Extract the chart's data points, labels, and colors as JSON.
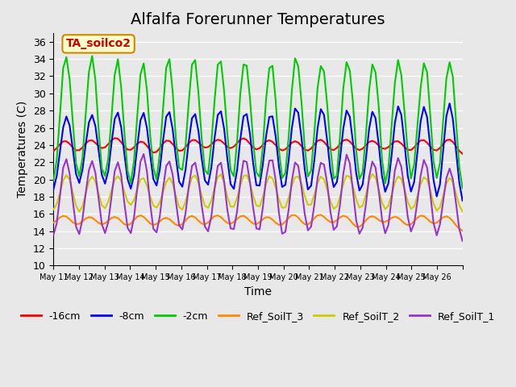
{
  "title": "Alfalfa Forerunner Temperatures",
  "xlabel": "Time",
  "ylabel": "Temperatures (C)",
  "ylim": [
    10,
    37
  ],
  "yticks": [
    10,
    12,
    14,
    16,
    18,
    20,
    22,
    24,
    26,
    28,
    30,
    32,
    34,
    36
  ],
  "annotation_text": "TA_soilco2",
  "annotation_color": "#cc0000",
  "annotation_bg": "#ffffcc",
  "annotation_border": "#cc8800",
  "series_colors": {
    "-16cm": "#ff0000",
    "-8cm": "#0000ff",
    "-2cm": "#00cc00",
    "Ref_SoilT_3": "#ff8800",
    "Ref_SoilT_2": "#cccc00",
    "Ref_SoilT_1": "#9933cc"
  },
  "series_order": [
    "-16cm",
    "-8cm",
    "-2cm",
    "Ref_SoilT_3",
    "Ref_SoilT_2",
    "Ref_SoilT_1"
  ],
  "background_color": "#e8e8e8",
  "plot_bg": "#e8e8e8",
  "grid_color": "#ffffff",
  "n_days": 16,
  "start_day": 11,
  "x_tick_labels": [
    "May 11",
    "May 12",
    "May 13",
    "May 14",
    "May 15",
    "May 16",
    "May 17",
    "May 18",
    "May 19",
    "May 20",
    "May 21",
    "May 22",
    "May 23",
    "May 24",
    "May 25",
    "May 26"
  ],
  "points_per_day": 8,
  "legend_fontsize": 9,
  "title_fontsize": 14
}
